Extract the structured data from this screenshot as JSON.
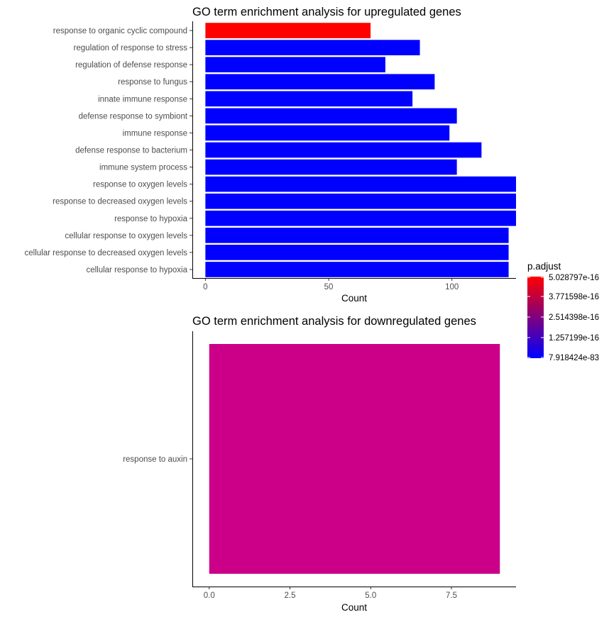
{
  "chart_data": [
    {
      "type": "bar",
      "orientation": "horizontal",
      "title": "GO term enrichment analysis for upregulated genes",
      "xlabel": "Count",
      "ylabel": "",
      "xlim": [
        -5,
        126
      ],
      "xticks": [
        0,
        50,
        100
      ],
      "xtick_labels": [
        "0",
        "50",
        "100"
      ],
      "grid": false,
      "categories": [
        "response to organic cyclic compound",
        "regulation of response to stress",
        "regulation of defense response",
        "response to fungus",
        "innate immune response",
        "defense response to symbiont",
        "immune response",
        "defense response to bacterium",
        "immune system process",
        "response to oxygen levels",
        "response to decreased oxygen levels",
        "response to hypoxia",
        "cellular response to oxygen levels",
        "cellular response to decreased oxygen levels",
        "cellular response to hypoxia"
      ],
      "values": [
        67,
        87,
        73,
        93,
        84,
        102,
        99,
        112,
        102,
        126,
        126,
        126,
        123,
        123,
        123
      ],
      "colors": [
        "#FF0000",
        "#0000FF",
        "#0000FF",
        "#0000FF",
        "#0000FF",
        "#0000FF",
        "#0000FF",
        "#0000FF",
        "#0000FF",
        "#0000FF",
        "#0000FF",
        "#0000FF",
        "#0000FF",
        "#0000FF",
        "#0000FF"
      ]
    },
    {
      "type": "bar",
      "orientation": "horizontal",
      "title": "GO term enrichment analysis for downregulated genes",
      "xlabel": "Count",
      "ylabel": "",
      "xlim": [
        -0.5,
        9.5
      ],
      "xticks": [
        0,
        2.5,
        5,
        7.5
      ],
      "xtick_labels": [
        "0.0",
        "2.5",
        "5.0",
        "7.5"
      ],
      "grid": false,
      "categories": [
        "response to auxin"
      ],
      "values": [
        9
      ],
      "colors": [
        "#CC0088"
      ]
    }
  ],
  "legend": {
    "title": "p.adjust",
    "placement": "right",
    "labels": [
      "5.028797e-16",
      "3.771598e-16",
      "2.514398e-16",
      "1.257199e-16",
      "7.918424e-83"
    ],
    "gradient_colors": [
      "#FF0000",
      "#0000FF"
    ]
  }
}
